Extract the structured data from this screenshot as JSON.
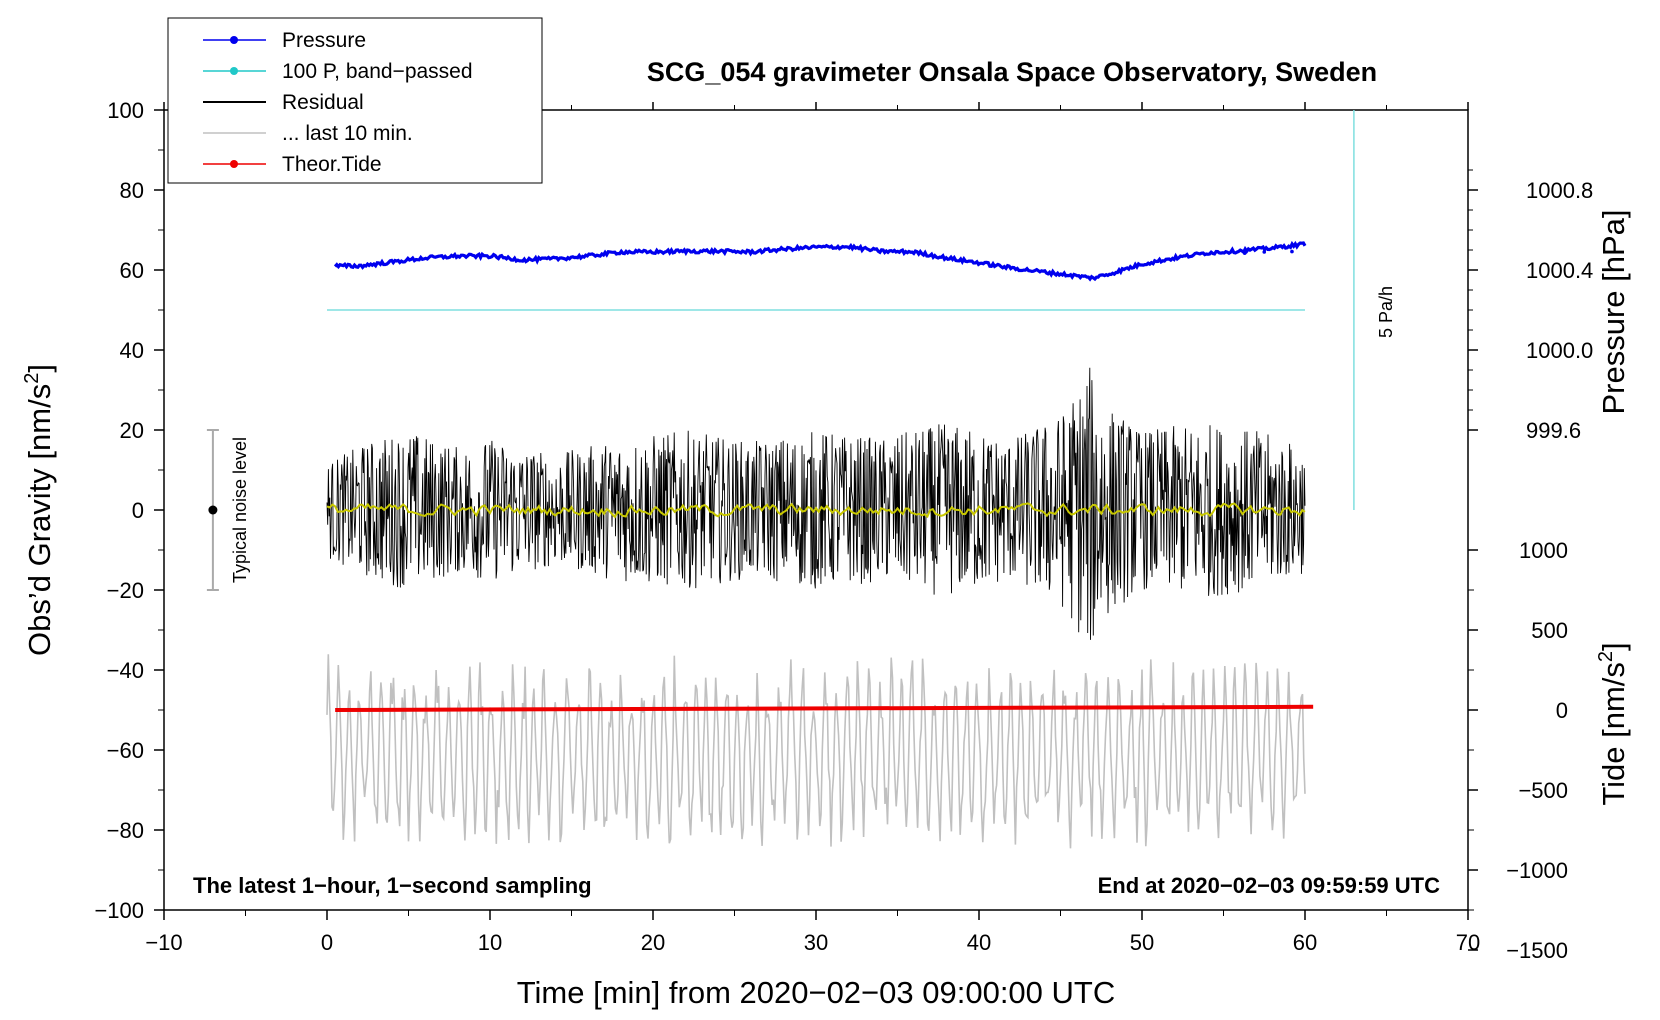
{
  "chart_data": {
    "type": "line",
    "title": "SCG_054 gravimeter Onsala Space Observatory, Sweden",
    "xlabel": "Time [min] from 2020−02−03 09:00:00 UTC",
    "ylabel_left_prefix": "Obs’d Gravity [nm/s",
    "ylabel_left_sup": "2",
    "ylabel_left_suffix": "]",
    "ylabel_pressure": "Pressure [hPa]",
    "ylabel_tide_prefix": "Tide [nm/s",
    "ylabel_tide_sup": "2",
    "ylabel_tide_suffix": "]",
    "xlim": [
      -10,
      70
    ],
    "ylim": [
      -100,
      100
    ],
    "x_ticks": [
      "−10",
      "0",
      "10",
      "20",
      "30",
      "40",
      "50",
      "60",
      "70"
    ],
    "x_tick_values": [
      -10,
      0,
      10,
      20,
      30,
      40,
      50,
      60,
      70
    ],
    "y_ticks": [
      "100",
      "80",
      "60",
      "40",
      "20",
      "0",
      "−20",
      "−40",
      "−60",
      "−80",
      "−100"
    ],
    "y_tick_values": [
      100,
      80,
      60,
      40,
      20,
      0,
      -20,
      -40,
      -60,
      -80,
      -100
    ],
    "pressure_ticks": [
      "1000.8",
      "1000.4",
      "1000.0",
      "999.6"
    ],
    "pressure_tick_values": [
      1000.8,
      1000.4,
      1000.0,
      999.6
    ],
    "pressure_to_left_map": {
      "p_ref": 1000.0,
      "left_at_ref": 40,
      "left_per_hpa": 50
    },
    "tide_ticks": [
      "1000",
      "500",
      "0",
      "−500",
      "−1000",
      "−1500"
    ],
    "tide_tick_values": [
      1000,
      500,
      0,
      -500,
      -1000,
      -1500
    ],
    "tide_to_left_map": {
      "t_ref": 0,
      "left_at_ref": -50,
      "left_per_unit": 0.04
    },
    "footer_left": "The latest 1−hour, 1−second sampling",
    "footer_right": "End at 2020−02−03 09:59:59 UTC",
    "noise_label": "Typical noise level",
    "noise_bar": {
      "x": -7,
      "low": -20,
      "high": 20,
      "center": 0
    },
    "rate_label": "5 Pa/h",
    "rate_line": {
      "x": 63,
      "y_from": 100,
      "y_to": 0
    },
    "colors": {
      "pressure": "#0000ee",
      "bandpass": "#7fdfdf",
      "residual": "#000000",
      "last10": "#c0c0c0",
      "tide": "#ee0000",
      "smoothed": "#c8c800"
    },
    "legend": [
      {
        "label": "Pressure",
        "color": "#0000ee",
        "marker": true
      },
      {
        "label": "100 P, band−passed",
        "color": "#20c8c8",
        "marker": true
      },
      {
        "label": "Residual",
        "color": "#000000",
        "marker": false
      },
      {
        "label": "... last 10 min.",
        "color": "#c0c0c0",
        "marker": false
      },
      {
        "label": "Theor.Tide",
        "color": "#ee0000",
        "marker": true
      }
    ],
    "series": [
      {
        "name": "Pressure",
        "axis": "left (plotted)",
        "x": [
          0.5,
          2,
          4,
          6,
          8,
          10,
          12,
          14,
          16,
          18,
          20,
          22,
          24,
          26,
          28,
          30,
          32,
          34,
          36,
          38,
          40,
          42,
          44,
          46,
          47,
          48,
          50,
          52,
          54,
          56,
          58,
          60
        ],
        "y": [
          61,
          61,
          62,
          63,
          63.5,
          63.5,
          62.5,
          62.8,
          63.5,
          64.5,
          64.5,
          64.7,
          64.7,
          64.5,
          65.2,
          65.7,
          65.8,
          64.7,
          64.5,
          63,
          61.8,
          60.5,
          59.5,
          58.5,
          58,
          59,
          61.5,
          63,
          64.3,
          64.8,
          65.5,
          66.5
        ]
      },
      {
        "name": "100 P, band-passed",
        "axis": "left (plotted)",
        "x": [
          0,
          60
        ],
        "y": [
          50,
          50
        ]
      },
      {
        "name": "Residual",
        "axis": "left",
        "x_range": [
          0,
          60
        ],
        "envelope_amplitude": [
          [
            0,
            12
          ],
          [
            3,
            18
          ],
          [
            5,
            20
          ],
          [
            8,
            16
          ],
          [
            10,
            18
          ],
          [
            14,
            14
          ],
          [
            18,
            18
          ],
          [
            22,
            20
          ],
          [
            26,
            17
          ],
          [
            30,
            20
          ],
          [
            34,
            18
          ],
          [
            38,
            22
          ],
          [
            42,
            18
          ],
          [
            45,
            24
          ],
          [
            46.8,
            36
          ],
          [
            48,
            26
          ],
          [
            50,
            20
          ],
          [
            54,
            22
          ],
          [
            57,
            20
          ],
          [
            60,
            16
          ]
        ],
        "smoothed_mean": 0
      },
      {
        "name": "... last 10 min.",
        "axis": "left",
        "x_range": [
          0,
          60
        ],
        "center": -61,
        "amplitude_max": 25
      },
      {
        "name": "Theor.Tide",
        "axis": "tide",
        "x": [
          0.5,
          60.5
        ],
        "y": [
          0,
          20
        ]
      }
    ]
  }
}
